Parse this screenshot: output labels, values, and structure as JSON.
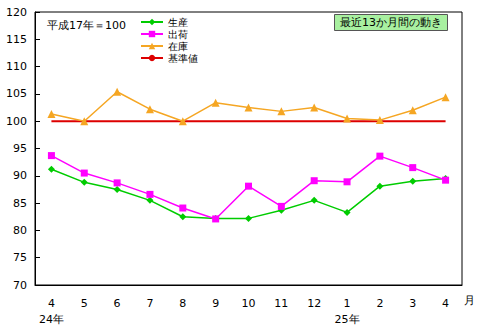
{
  "chart_data": {
    "type": "line",
    "title": "最近13か月間の動き",
    "subtitle": "平成17年＝100",
    "xlabel": "月",
    "categories": [
      "4\n24年",
      "5",
      "6",
      "7",
      "8",
      "9",
      "10",
      "11",
      "12",
      "1\n25年",
      "2",
      "3",
      "4"
    ],
    "series": [
      {
        "name": "生産",
        "color": "#00cc00",
        "marker": "diamond",
        "values": [
          91.2,
          88.8,
          87.5,
          85.5,
          82.5,
          82.2,
          82.2,
          83.7,
          85.5,
          83.3,
          88.1,
          89.0,
          89.5
        ]
      },
      {
        "name": "出荷",
        "color": "#ff00ff",
        "marker": "square",
        "values": [
          93.7,
          90.5,
          88.7,
          86.6,
          84.1,
          82.1,
          88.1,
          84.4,
          89.1,
          88.9,
          93.6,
          91.5,
          89.2
        ]
      },
      {
        "name": "在庫",
        "color": "#f5a623",
        "marker": "triangle",
        "values": [
          101.3,
          100.0,
          105.4,
          102.2,
          100.0,
          103.4,
          102.5,
          101.8,
          102.5,
          100.5,
          100.2,
          102.0,
          104.4
        ]
      },
      {
        "name": "基準値",
        "color": "#dd0000",
        "marker": "none",
        "values": [
          100,
          100,
          100,
          100,
          100,
          100,
          100,
          100,
          100,
          100,
          100,
          100,
          100
        ]
      }
    ],
    "ylim": [
      70,
      120
    ],
    "yticks": [
      70,
      75,
      80,
      85,
      90,
      95,
      100,
      105,
      110,
      115,
      120
    ],
    "grid": false,
    "legend": "top-left"
  }
}
